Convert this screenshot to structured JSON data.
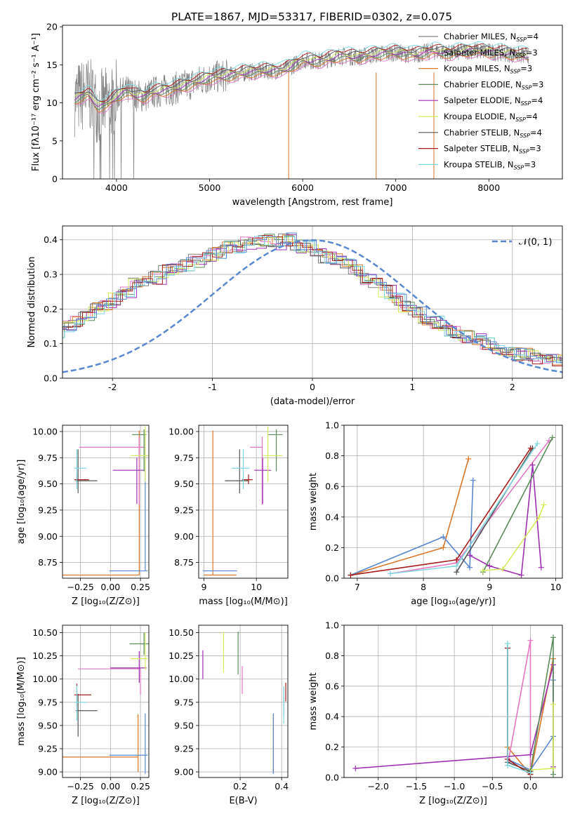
{
  "figure_title": "PLATE=1867, MJD=53317, FIBERID=0302, z=0.075",
  "series": [
    {
      "name": "Chabrier MILES",
      "nssp": "4",
      "sub": "SSP",
      "color": "#808080"
    },
    {
      "name": "Salpeter MILES",
      "nssp": "3",
      "sub": "SSP",
      "color": "#e377c2"
    },
    {
      "name": "Kroupa MILES",
      "nssp": "3",
      "sub": "SSP",
      "color": "#d9772a"
    },
    {
      "name": "Chabrier ELODIE",
      "nssp": "3",
      "sub": "SSP",
      "color": "#5b8c5a"
    },
    {
      "name": "Salpeter ELODIE",
      "nssp": "4",
      "sub": "SSP",
      "color": "#9b30b0"
    },
    {
      "name": "Kroupa ELODIE",
      "nssp": "4",
      "sub": "SSP",
      "color": "#d4ec5a"
    },
    {
      "name": "Chabrier STELIB",
      "nssp": "4",
      "sub": "SSP",
      "color": "#555555"
    },
    {
      "name": "Salpeter STELIB",
      "nssp": "3",
      "sub": "SSP",
      "color": "#a51c1c"
    },
    {
      "name": "Kroupa STELIB",
      "nssp": "3",
      "sub": "SSP",
      "color": "#7fd8e0"
    }
  ],
  "chart_data": [
    {
      "id": "spectrum",
      "type": "line",
      "xlabel": "wavelength [Angstrom, rest frame]",
      "ylabel": "Flux [fλ10⁻¹⁷ erg cm⁻² s⁻¹ A⁻¹]",
      "xlim": [
        3420,
        8790
      ],
      "ylim": [
        0,
        20.2
      ],
      "xticks": [
        4000,
        5000,
        6000,
        7000,
        8000
      ],
      "yticks": [
        0,
        5,
        10,
        15,
        20
      ],
      "data_color": "#808080",
      "model_x": [
        3550,
        3700,
        3800,
        3900,
        4000,
        4100,
        4200,
        4300,
        4400,
        4600,
        4800,
        5000,
        5200,
        5400,
        5600,
        5800,
        6000,
        6200,
        6400,
        6600,
        6800,
        7000,
        7200,
        7400,
        7600,
        7800,
        8000,
        8200,
        8400
      ],
      "model_y": [
        10.5,
        11.2,
        9.5,
        9.8,
        10.8,
        11.5,
        11.0,
        10.8,
        11.4,
        11.8,
        12.5,
        13.3,
        13.6,
        14.0,
        14.2,
        14.3,
        15.6,
        15.5,
        16.2,
        16.0,
        16.4,
        16.6,
        16.3,
        16.8,
        16.5,
        16.9,
        16.7,
        16.5,
        16.2
      ],
      "grid": false,
      "legend": "upper right"
    },
    {
      "id": "residuals",
      "type": "histogram",
      "xlabel": "(data-model)/error",
      "ylabel": "Normed distribution",
      "xlim": [
        -2.5,
        2.5
      ],
      "ylim": [
        0,
        0.44
      ],
      "xticks": [
        -2,
        -1,
        0,
        1,
        2
      ],
      "yticks": [
        0.0,
        0.1,
        0.2,
        0.3,
        0.4
      ],
      "bin_width": 0.1,
      "base_hist": [
        0.06,
        0.07,
        0.06,
        0.07,
        0.08,
        0.09,
        0.1,
        0.11,
        0.12,
        0.13,
        0.15,
        0.16,
        0.18,
        0.2,
        0.21,
        0.23,
        0.25,
        0.27,
        0.28,
        0.29,
        0.31,
        0.32,
        0.33,
        0.34,
        0.35,
        0.36,
        0.38,
        0.38,
        0.39,
        0.39,
        0.4,
        0.39,
        0.4,
        0.38,
        0.38,
        0.37,
        0.35,
        0.34,
        0.33,
        0.31,
        0.29,
        0.27,
        0.25,
        0.23,
        0.21,
        0.19,
        0.17,
        0.16,
        0.14,
        0.13,
        0.12,
        0.11,
        0.1,
        0.09,
        0.08,
        0.07,
        0.07,
        0.06,
        0.06,
        0.05,
        0.05,
        0.05,
        0.04,
        0.04,
        0.03,
        0.03,
        0.03,
        0.02,
        0.02,
        0.02
      ],
      "gaussian_label": "𝒩(0, 1)",
      "gaussian_color": "#5a88d0",
      "grid": true,
      "legend": "upper right"
    },
    {
      "id": "age_vs_Z",
      "type": "errorbar",
      "xlabel": "Z [log₁₀(Z/Z⊙)]",
      "ylabel": "age  [log₁₀(age/yr)]",
      "xlim": [
        -0.4,
        0.32
      ],
      "ylim": [
        8.6,
        10.06
      ],
      "xticks": [
        -0.25,
        0.0,
        0.25
      ],
      "xticklabels": [
        "−0.25",
        "0.00",
        "0.25"
      ],
      "yticks": [
        8.75,
        9.0,
        9.25,
        9.5,
        9.75,
        10.0
      ],
      "grid": true,
      "points": [
        {
          "c": "#d9772a",
          "x": 0.24,
          "y": 8.63,
          "xe": [
            0.65,
            0.0
          ],
          "ye": [
            0.0,
            1.38
          ]
        },
        {
          "c": "#5a88d0",
          "x": 0.29,
          "y": 8.67,
          "xe": [
            0.3,
            0.02
          ],
          "ye": [
            0.0,
            1.3
          ]
        },
        {
          "c": "#e377c2",
          "x": 0.24,
          "y": 9.85,
          "xe": [
            0.5,
            0.05
          ],
          "ye": [
            0.55,
            0.1
          ]
        },
        {
          "c": "#9b30b0",
          "x": 0.22,
          "y": 9.63,
          "xe": [
            0.2,
            0.07
          ],
          "ye": [
            0.32,
            0.12
          ]
        },
        {
          "c": "#5b8c5a",
          "x": 0.28,
          "y": 9.97,
          "xe": [
            0.1,
            0.02
          ],
          "ye": [
            0.35,
            0.05
          ]
        },
        {
          "c": "#d4ec5a",
          "x": 0.29,
          "y": 9.77,
          "xe": [
            0.12,
            0.03
          ],
          "ye": [
            0.25,
            0.28
          ]
        },
        {
          "c": "#555555",
          "x": -0.27,
          "y": 9.53,
          "xe": [
            0.02,
            0.16
          ],
          "ye": [
            0.12,
            0.3
          ]
        },
        {
          "c": "#a51c1c",
          "x": -0.28,
          "y": 9.54,
          "xe": [
            0.02,
            0.1
          ],
          "ye": [
            0.04,
            0.05
          ]
        },
        {
          "c": "#7fd8e0",
          "x": -0.28,
          "y": 9.65,
          "xe": [
            0.02,
            0.08
          ],
          "ye": [
            0.2,
            0.18
          ]
        }
      ]
    },
    {
      "id": "age_vs_mass",
      "type": "errorbar",
      "xlabel": "mass [log₁₀(M/M⊙)]",
      "ylabel": "",
      "xlim": [
        8.9,
        10.6
      ],
      "ylim": [
        8.6,
        10.06
      ],
      "xticks": [
        9,
        10
      ],
      "yticks": [
        8.75,
        9.0,
        9.25,
        9.5,
        9.75,
        10.0
      ],
      "grid": true,
      "points": [
        {
          "c": "#d9772a",
          "x": 9.17,
          "y": 8.63,
          "xe": [
            0.17,
            0.45
          ],
          "ye": [
            0.0,
            1.38
          ]
        },
        {
          "c": "#5a88d0",
          "x": 9.18,
          "y": 8.67,
          "xe": [
            0.2,
            0.45
          ],
          "ye": [
            0.0,
            0.0
          ]
        },
        {
          "c": "#e377c2",
          "x": 10.11,
          "y": 9.85,
          "xe": [
            0.23,
            0.0
          ],
          "ye": [
            0.55,
            0.1
          ]
        },
        {
          "c": "#9b30b0",
          "x": 10.12,
          "y": 9.63,
          "xe": [
            0.16,
            0.16
          ],
          "ye": [
            0.32,
            0.12
          ]
        },
        {
          "c": "#5b8c5a",
          "x": 10.38,
          "y": 9.97,
          "xe": [
            0.15,
            0.12
          ],
          "ye": [
            0.35,
            0.05
          ]
        },
        {
          "c": "#d4ec5a",
          "x": 10.22,
          "y": 9.77,
          "xe": [
            0.1,
            0.28
          ],
          "ye": [
            0.25,
            0.28
          ]
        },
        {
          "c": "#555555",
          "x": 9.68,
          "y": 9.53,
          "xe": [
            0.28,
            0.18
          ],
          "ye": [
            0.12,
            0.3
          ]
        },
        {
          "c": "#a51c1c",
          "x": 9.85,
          "y": 9.54,
          "xe": [
            0.12,
            0.08
          ],
          "ye": [
            0.04,
            0.05
          ]
        },
        {
          "c": "#7fd8e0",
          "x": 9.75,
          "y": 9.65,
          "xe": [
            0.22,
            0.12
          ],
          "ye": [
            0.2,
            0.18
          ]
        }
      ]
    },
    {
      "id": "mass_weight_vs_age",
      "type": "line",
      "xlabel": "age  [log₁₀(age/yr)]",
      "ylabel": "mass weight",
      "xlim": [
        6.8,
        10.1
      ],
      "ylim": [
        0,
        1.0
      ],
      "xticks": [
        7,
        8,
        9,
        10
      ],
      "yticks": [
        0.0,
        0.2,
        0.4,
        0.6,
        0.8,
        1.0
      ],
      "grid": true,
      "lines": [
        {
          "c": "#d9772a",
          "x": [
            6.9,
            8.3,
            8.68
          ],
          "y": [
            0.02,
            0.2,
            0.78
          ]
        },
        {
          "c": "#5a88d0",
          "x": [
            6.9,
            8.3,
            8.7,
            8.75
          ],
          "y": [
            0.02,
            0.27,
            0.07,
            0.64
          ]
        },
        {
          "c": "#e377c2",
          "x": [
            7.5,
            8.5,
            9.9
          ],
          "y": [
            0.03,
            0.1,
            0.9
          ]
        },
        {
          "c": "#9b30b0",
          "x": [
            8.7,
            9.0,
            9.48,
            9.65,
            9.78
          ],
          "y": [
            0.15,
            0.08,
            0.02,
            0.74,
            0.07
          ]
        },
        {
          "c": "#5b8c5a",
          "x": [
            8.9,
            9.95
          ],
          "y": [
            0.04,
            0.92
          ]
        },
        {
          "c": "#d4ec5a",
          "x": [
            8.9,
            9.2,
            9.75,
            9.82
          ],
          "y": [
            0.05,
            0.06,
            0.4,
            0.48
          ]
        },
        {
          "c": "#555555",
          "x": [
            8.5,
            9.65
          ],
          "y": [
            0.04,
            0.85
          ]
        },
        {
          "c": "#a51c1c",
          "x": [
            6.9,
            8.5,
            9.62
          ],
          "y": [
            0.02,
            0.12,
            0.85
          ]
        },
        {
          "c": "#7fd8e0",
          "x": [
            7.5,
            8.5,
            9.72
          ],
          "y": [
            0.03,
            0.08,
            0.88
          ]
        }
      ]
    },
    {
      "id": "mass_vs_Z",
      "type": "errorbar",
      "xlabel": "Z [log₁₀(Z/Z⊙)]",
      "ylabel": "mass [log₁₀(M/M⊙)]",
      "xlim": [
        -0.4,
        0.32
      ],
      "ylim": [
        8.94,
        10.58
      ],
      "xticks": [
        -0.25,
        0.0,
        0.25
      ],
      "xticklabels": [
        "−0.25",
        "0.00",
        "0.25"
      ],
      "yticks": [
        9.0,
        9.25,
        9.5,
        9.75,
        10.0,
        10.25,
        10.5
      ],
      "grid": true,
      "points": [
        {
          "c": "#d9772a",
          "x": 0.23,
          "y": 9.16,
          "xe": [
            0.65,
            0.0
          ],
          "ye": [
            0.16,
            0.46
          ]
        },
        {
          "c": "#5a88d0",
          "x": 0.29,
          "y": 9.18,
          "xe": [
            0.3,
            0.02
          ],
          "ye": [
            0.2,
            0.45
          ]
        },
        {
          "c": "#e377c2",
          "x": 0.25,
          "y": 10.11,
          "xe": [
            0.52,
            0.0
          ],
          "ye": [
            0.28,
            0.0
          ]
        },
        {
          "c": "#9b30b0",
          "x": 0.24,
          "y": 10.12,
          "xe": [
            0.24,
            0.06
          ],
          "ye": [
            0.16,
            0.18
          ]
        },
        {
          "c": "#5b8c5a",
          "x": 0.28,
          "y": 10.38,
          "xe": [
            0.12,
            0.04
          ],
          "ye": [
            0.12,
            0.12
          ]
        },
        {
          "c": "#d4ec5a",
          "x": 0.29,
          "y": 10.22,
          "xe": [
            0.12,
            0.02
          ],
          "ye": [
            0.12,
            0.28
          ]
        },
        {
          "c": "#555555",
          "x": -0.27,
          "y": 9.66,
          "xe": [
            0.02,
            0.16
          ],
          "ye": [
            0.28,
            0.18
          ]
        },
        {
          "c": "#a51c1c",
          "x": -0.28,
          "y": 9.83,
          "xe": [
            0.02,
            0.12
          ],
          "ye": [
            0.12,
            0.12
          ]
        },
        {
          "c": "#7fd8e0",
          "x": -0.28,
          "y": 9.75,
          "xe": [
            0.02,
            0.08
          ],
          "ye": [
            0.2,
            0.18
          ]
        }
      ]
    },
    {
      "id": "mass_vs_EBV",
      "type": "errorbar",
      "xlabel": "E(B-V)",
      "ylabel": "",
      "xlim": [
        0.0,
        0.43
      ],
      "ylim": [
        8.94,
        10.58
      ],
      "xticks": [
        0.2,
        0.4
      ],
      "yticks": [
        9.0,
        9.25,
        9.5,
        9.75,
        10.0,
        10.25,
        10.5
      ],
      "grid": true,
      "points": [
        {
          "c": "#d9772a",
          "x": 0.36,
          "y": 9.16,
          "xe": [
            0,
            0
          ],
          "ye": [
            0.16,
            0.46
          ]
        },
        {
          "c": "#5a88d0",
          "x": 0.36,
          "y": 9.18,
          "xe": [
            0,
            0
          ],
          "ye": [
            0.2,
            0.45
          ]
        },
        {
          "c": "#e377c2",
          "x": 0.21,
          "y": 10.0,
          "xe": [
            0,
            0
          ],
          "ye": [
            0.16,
            0.14
          ]
        },
        {
          "c": "#9b30b0",
          "x": 0.02,
          "y": 10.15,
          "xe": [
            0,
            0
          ],
          "ye": [
            0.15,
            0.16
          ]
        },
        {
          "c": "#5b8c5a",
          "x": 0.19,
          "y": 10.29,
          "xe": [
            0,
            0
          ],
          "ye": [
            0.24,
            0.22
          ]
        },
        {
          "c": "#d4ec5a",
          "x": 0.12,
          "y": 10.29,
          "xe": [
            0,
            0
          ],
          "ye": [
            0.22,
            0.22
          ]
        },
        {
          "c": "#555555",
          "x": 0.41,
          "y": 9.78,
          "xe": [
            0,
            0
          ],
          "ye": [
            0.16,
            0.14
          ]
        },
        {
          "c": "#a51c1c",
          "x": 0.42,
          "y": 9.86,
          "xe": [
            0,
            0
          ],
          "ye": [
            0.1,
            0.1
          ]
        },
        {
          "c": "#7fd8e0",
          "x": 0.41,
          "y": 9.72,
          "xe": [
            0,
            0
          ],
          "ye": [
            0.2,
            0.2
          ]
        }
      ]
    },
    {
      "id": "mass_weight_vs_Z",
      "type": "line",
      "xlabel": "Z [log₁₀(Z/Z⊙)]",
      "ylabel": "mass weight",
      "xlim": [
        -2.45,
        0.42
      ],
      "ylim": [
        0,
        1.0
      ],
      "xticks": [
        -2.0,
        -1.5,
        -1.0,
        -0.5,
        0.0
      ],
      "xticklabels": [
        "−2.0",
        "−1.5",
        "−1.0",
        "−0.5",
        "0.0"
      ],
      "yticks": [
        0.0,
        0.2,
        0.4,
        0.6,
        0.8,
        1.0
      ],
      "grid": true,
      "lines": [
        {
          "c": "#d9772a",
          "x": [
            -0.3,
            -0.3,
            0.0,
            0.3
          ],
          "y": [
            0.12,
            0.2,
            0.02,
            0.78
          ]
        },
        {
          "c": "#5a88d0",
          "x": [
            -0.3,
            0.0,
            0.3,
            0.3
          ],
          "y": [
            0.12,
            0.05,
            0.27,
            0.64
          ]
        },
        {
          "c": "#e377c2",
          "x": [
            -0.3,
            0.0,
            0.0
          ],
          "y": [
            0.08,
            0.9,
            0.03
          ]
        },
        {
          "c": "#9b30b0",
          "x": [
            -2.3,
            0.0,
            0.3,
            0.3
          ],
          "y": [
            0.06,
            0.15,
            0.74,
            0.07
          ]
        },
        {
          "c": "#5b8c5a",
          "x": [
            0.0,
            0.3,
            0.3
          ],
          "y": [
            0.04,
            0.92,
            0.02
          ]
        },
        {
          "c": "#d4ec5a",
          "x": [
            0.0,
            0.3,
            0.3
          ],
          "y": [
            0.05,
            0.06,
            0.48
          ]
        },
        {
          "c": "#555555",
          "x": [
            -0.3,
            -0.3,
            0.0
          ],
          "y": [
            0.85,
            0.1,
            0.04
          ]
        },
        {
          "c": "#a51c1c",
          "x": [
            -0.3,
            -0.3,
            0.0
          ],
          "y": [
            0.85,
            0.12,
            0.02
          ]
        },
        {
          "c": "#7fd8e0",
          "x": [
            -0.3,
            -0.3,
            0.0
          ],
          "y": [
            0.88,
            0.08,
            0.03
          ]
        }
      ]
    }
  ]
}
